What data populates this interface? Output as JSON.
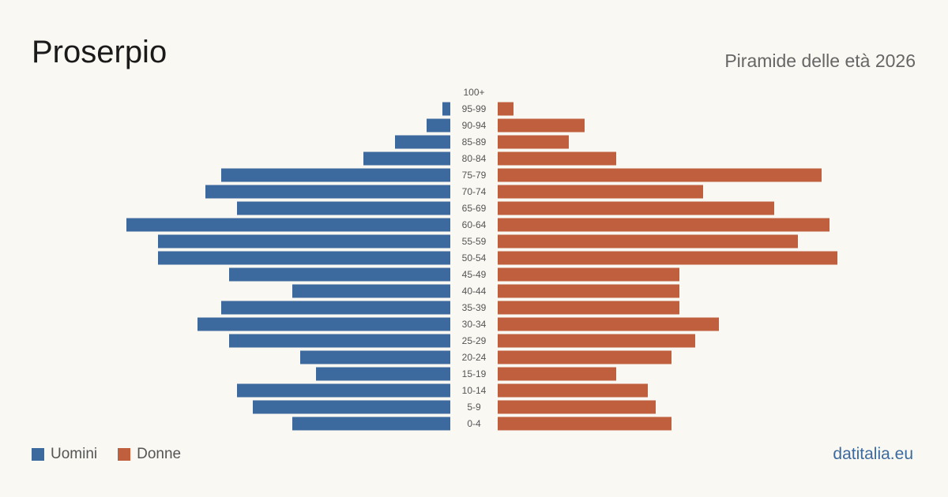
{
  "header": {
    "title": "Proserpio",
    "subtitle": "Piramide delle età 2026"
  },
  "footer": {
    "brand": "datitalia.eu"
  },
  "chart_data": {
    "type": "bar",
    "orientation": "horizontal-pyramid",
    "categories": [
      "100+",
      "95-99",
      "90-94",
      "85-89",
      "80-84",
      "75-79",
      "70-74",
      "65-69",
      "60-64",
      "55-59",
      "50-54",
      "45-49",
      "40-44",
      "35-39",
      "30-34",
      "25-29",
      "20-24",
      "15-19",
      "10-14",
      "5-9",
      "0-4"
    ],
    "series": [
      {
        "name": "Uomini",
        "color": "#3d6a9e",
        "side": "left",
        "values": [
          0,
          1,
          3,
          7,
          11,
          29,
          31,
          27,
          41,
          37,
          37,
          28,
          20,
          29,
          32,
          28,
          19,
          17,
          27,
          25,
          20
        ]
      },
      {
        "name": "Donne",
        "color": "#bf5f3e",
        "side": "right",
        "values": [
          0,
          2,
          11,
          9,
          15,
          41,
          26,
          35,
          42,
          38,
          43,
          23,
          23,
          23,
          28,
          25,
          22,
          15,
          19,
          20,
          22
        ]
      }
    ],
    "axis_shown": false,
    "grid": false,
    "legend_position": "bottom-left"
  }
}
